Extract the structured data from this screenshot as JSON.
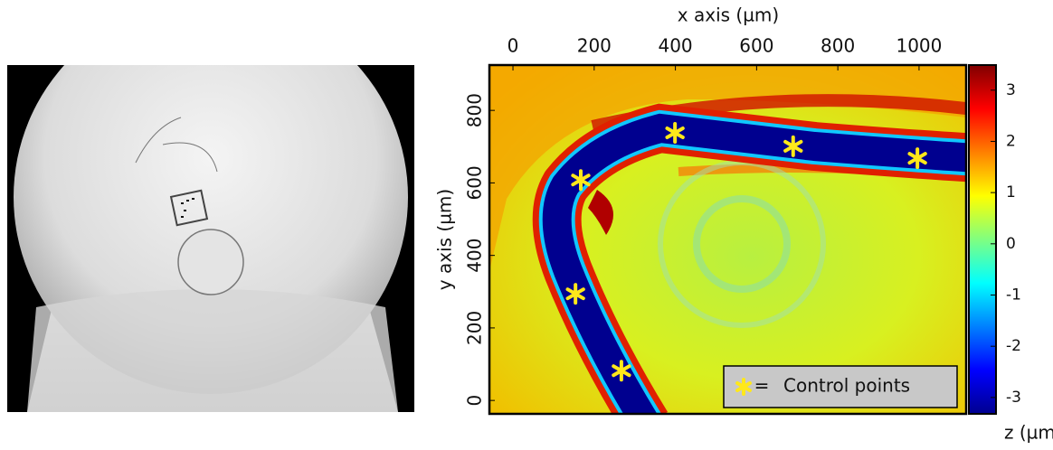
{
  "chart_data": {
    "type": "scatter",
    "x_label": "x axis (µm)",
    "y_label": "y axis (µm)",
    "xlim": [
      -58,
      1116
    ],
    "ylim": [
      -37,
      925
    ],
    "xticks": [
      0,
      200,
      400,
      600,
      800,
      1000
    ],
    "yticks": [
      0,
      200,
      400,
      600,
      800
    ],
    "series": [
      {
        "name": "Control points",
        "color": "#ffe81a",
        "x": [
          267,
          154,
          167,
          399,
          690,
          996
        ],
        "y": [
          82,
          294,
          608,
          738,
          701,
          668
        ]
      }
    ],
    "legend_equals": "=",
    "colorbar": {
      "label": "z (µm)",
      "lim": [
        -3.32,
        3.49
      ],
      "ticks": [
        -3,
        -2,
        -1,
        0,
        1,
        2,
        3
      ],
      "colorscale": [
        "#00008f",
        "#0000ff",
        "#0080ff",
        "#00ffff",
        "#80ff80",
        "#ffff00",
        "#ff8000",
        "#ff0000",
        "#800000"
      ]
    }
  }
}
